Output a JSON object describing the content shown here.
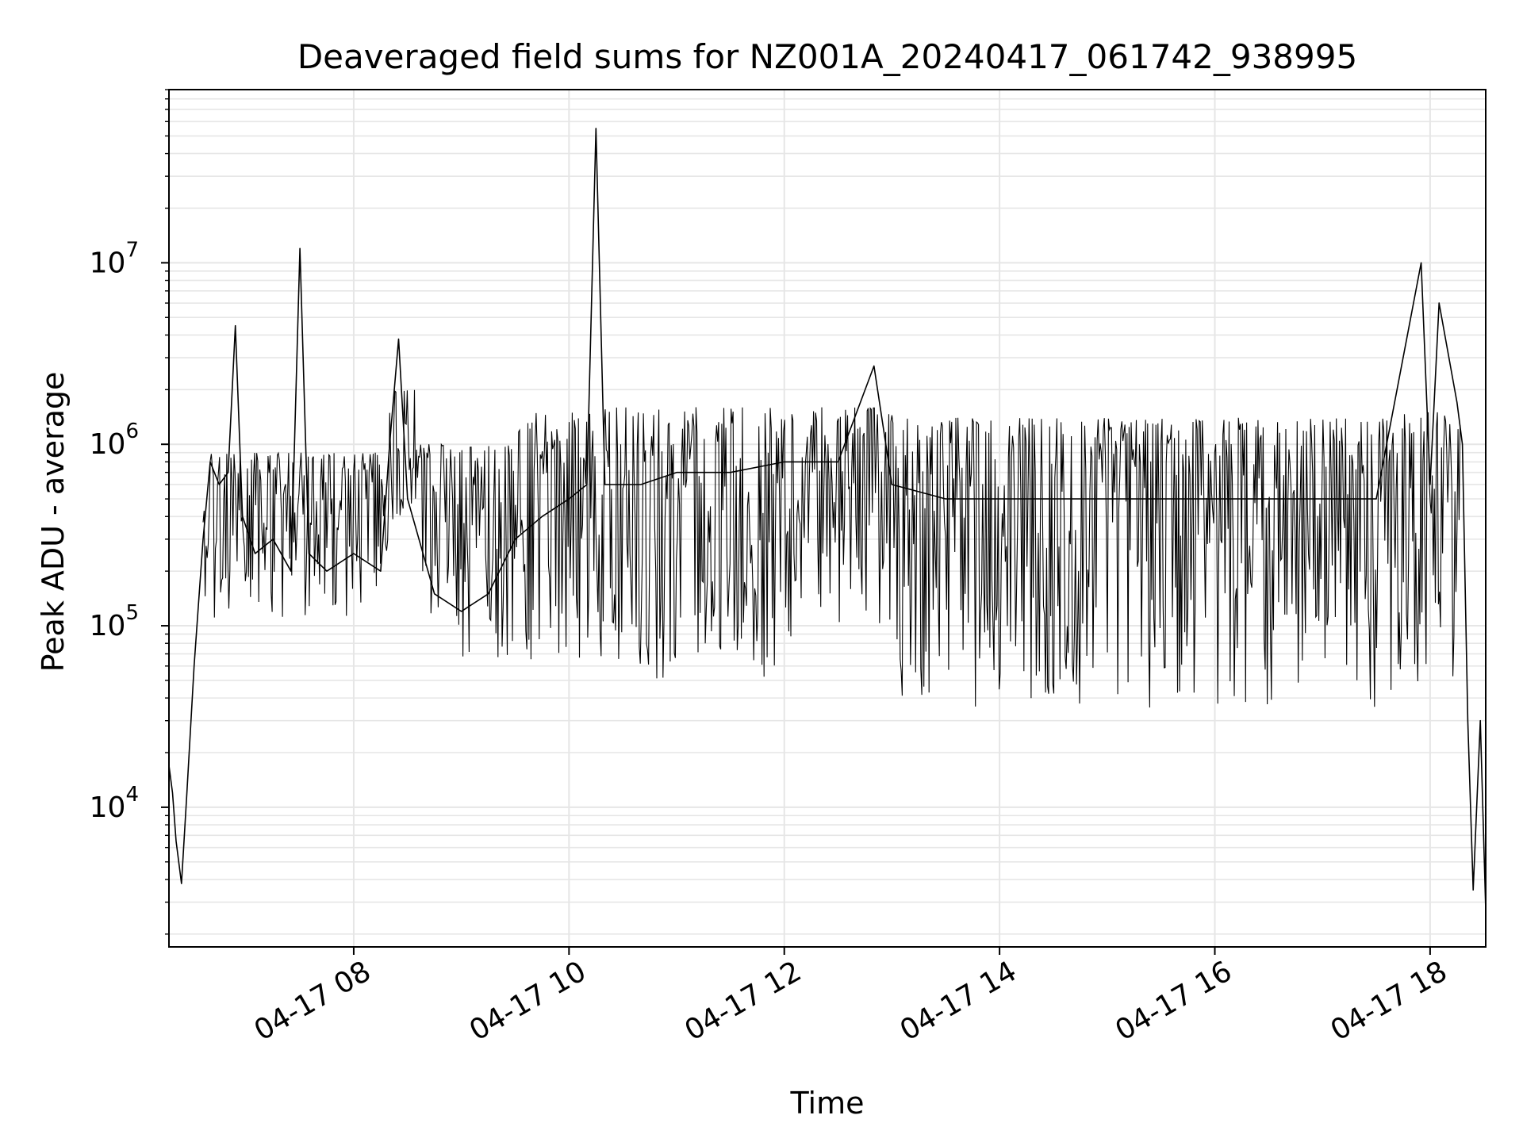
{
  "chart_data": {
    "type": "line",
    "title": "Deaveraged field sums for NZ001A_20240417_061742_938995",
    "xlabel": "Time",
    "ylabel": "Peak ADU - average",
    "yscale": "log",
    "xlim": [
      "2024-04-17 06:17",
      "2024-04-17 18:31"
    ],
    "ylim": [
      1700,
      90000000
    ],
    "grid": true,
    "line_color": "#000000",
    "grid_color": "#e6e6e6",
    "x_ticks": [
      {
        "value": "2024-04-17 08:00",
        "label": "04-17 08"
      },
      {
        "value": "2024-04-17 10:00",
        "label": "04-17 10"
      },
      {
        "value": "2024-04-17 12:00",
        "label": "04-17 12"
      },
      {
        "value": "2024-04-17 14:00",
        "label": "04-17 14"
      },
      {
        "value": "2024-04-17 16:00",
        "label": "04-17 16"
      },
      {
        "value": "2024-04-17 18:00",
        "label": "04-17 18"
      }
    ],
    "y_ticks": [
      {
        "value": 10000,
        "base": "10",
        "exp": "4"
      },
      {
        "value": 100000,
        "base": "10",
        "exp": "5"
      },
      {
        "value": 1000000,
        "base": "10",
        "exp": "6"
      },
      {
        "value": 10000000,
        "base": "10",
        "exp": "7"
      }
    ],
    "series": [
      {
        "points": [
          [
            "2024-04-17 06:17",
            17000
          ],
          [
            "2024-04-17 06:19",
            12000
          ],
          [
            "2024-04-17 06:21",
            6500
          ],
          [
            "2024-04-17 06:24",
            3800
          ],
          [
            "2024-04-17 06:27",
            12000
          ],
          [
            "2024-04-17 06:31",
            60000
          ],
          [
            "2024-04-17 06:36",
            300000
          ],
          [
            "2024-04-17 06:40",
            800000
          ],
          [
            "2024-04-17 06:45",
            600000
          ],
          [
            "2024-04-17 06:50",
            700000
          ],
          [
            "2024-04-17 06:54",
            4500000
          ],
          [
            "2024-04-17 06:58",
            400000
          ],
          [
            "2024-04-17 07:05",
            250000
          ],
          [
            "2024-04-17 07:15",
            300000
          ],
          [
            "2024-04-17 07:25",
            200000
          ],
          [
            "2024-04-17 07:30",
            12000000
          ],
          [
            "2024-04-17 07:35",
            250000
          ],
          [
            "2024-04-17 07:45",
            200000
          ],
          [
            "2024-04-17 08:00",
            250000
          ],
          [
            "2024-04-17 08:15",
            200000
          ],
          [
            "2024-04-17 08:20",
            1000000
          ],
          [
            "2024-04-17 08:25",
            3800000
          ],
          [
            "2024-04-17 08:30",
            500000
          ],
          [
            "2024-04-17 08:45",
            150000
          ],
          [
            "2024-04-17 09:00",
            120000
          ],
          [
            "2024-04-17 09:15",
            150000
          ],
          [
            "2024-04-17 09:30",
            300000
          ],
          [
            "2024-04-17 09:45",
            400000
          ],
          [
            "2024-04-17 10:00",
            500000
          ],
          [
            "2024-04-17 10:10",
            600000
          ],
          [
            "2024-04-17 10:15",
            55000000
          ],
          [
            "2024-04-17 10:20",
            600000
          ],
          [
            "2024-04-17 10:40",
            600000
          ],
          [
            "2024-04-17 11:00",
            700000
          ],
          [
            "2024-04-17 11:30",
            700000
          ],
          [
            "2024-04-17 12:00",
            800000
          ],
          [
            "2024-04-17 12:30",
            800000
          ],
          [
            "2024-04-17 12:50",
            2700000
          ],
          [
            "2024-04-17 13:00",
            600000
          ],
          [
            "2024-04-17 13:30",
            500000
          ],
          [
            "2024-04-17 14:00",
            500000
          ],
          [
            "2024-04-17 14:30",
            500000
          ],
          [
            "2024-04-17 15:00",
            500000
          ],
          [
            "2024-04-17 15:30",
            500000
          ],
          [
            "2024-04-17 16:00",
            500000
          ],
          [
            "2024-04-17 16:30",
            500000
          ],
          [
            "2024-04-17 17:00",
            500000
          ],
          [
            "2024-04-17 17:30",
            500000
          ],
          [
            "2024-04-17 17:55",
            10000000
          ],
          [
            "2024-04-17 18:00",
            600000
          ],
          [
            "2024-04-17 18:05",
            6000000
          ],
          [
            "2024-04-17 18:15",
            1700000
          ],
          [
            "2024-04-17 18:18",
            1000000
          ],
          [
            "2024-04-17 18:21",
            30000
          ],
          [
            "2024-04-17 18:24",
            3500
          ],
          [
            "2024-04-17 18:28",
            30000
          ],
          [
            "2024-04-17 18:31",
            2700
          ]
        ]
      }
    ]
  }
}
